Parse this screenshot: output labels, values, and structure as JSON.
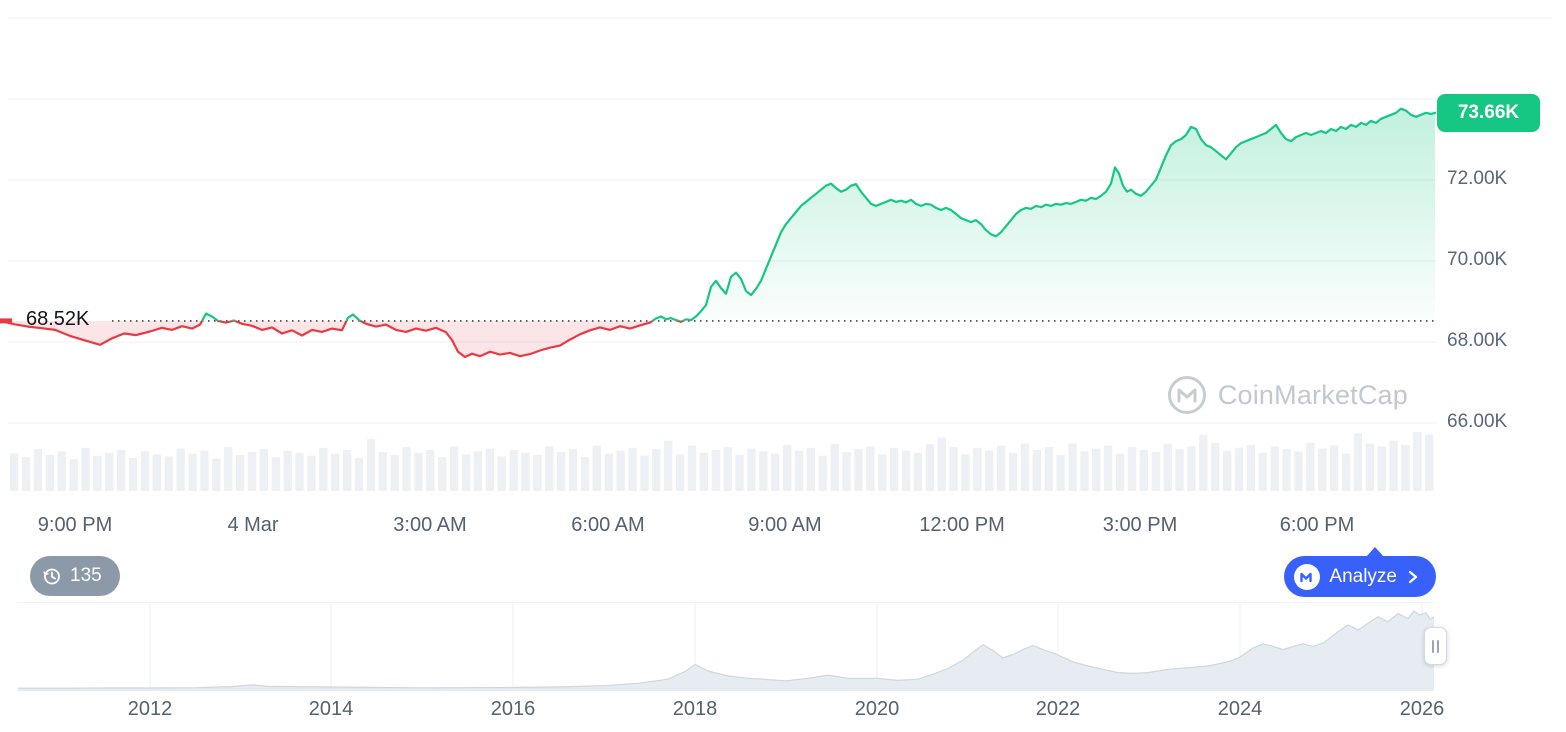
{
  "watermark": {
    "text": "CoinMarketCap"
  },
  "controls": {
    "history_count": "135",
    "analyze_label": "Analyze"
  },
  "colors": {
    "up": "#16c784",
    "down": "#ea3943",
    "accent_blue": "#3861fb",
    "badge_green": "#16c784",
    "pill_gray": "#8c99a9"
  },
  "chart_data": [
    {
      "type": "line",
      "baseline": {
        "value": 68520,
        "label": "68.52K"
      },
      "last_price": {
        "value": 73660,
        "label": "73.66K"
      },
      "ylim": [
        66000,
        76000
      ],
      "y_ticks": [
        {
          "value": 72000,
          "label": "72.00K"
        },
        {
          "value": 70000,
          "label": "70.00K"
        },
        {
          "value": 68000,
          "label": "68.00K"
        },
        {
          "value": 66000,
          "label": "66.00K"
        }
      ],
      "gridline_values": [
        76000,
        74000,
        72000,
        70000,
        68000,
        66000
      ],
      "x_ticks": [
        "9:00 PM",
        "4 Mar",
        "3:00 AM",
        "6:00 AM",
        "9:00 AM",
        "12:00 PM",
        "3:00 PM",
        "6:00 PM"
      ],
      "legend": "price above baseline green, below baseline red",
      "grid": true,
      "colors": {
        "up": "#16c784",
        "down": "#ea3943"
      },
      "points": [
        [
          0,
          68520
        ],
        [
          14,
          68440
        ],
        [
          28,
          68380
        ],
        [
          42,
          68340
        ],
        [
          55,
          68300
        ],
        [
          70,
          68150
        ],
        [
          85,
          68040
        ],
        [
          100,
          67930
        ],
        [
          112,
          68090
        ],
        [
          124,
          68210
        ],
        [
          136,
          68170
        ],
        [
          150,
          68260
        ],
        [
          162,
          68350
        ],
        [
          172,
          68300
        ],
        [
          182,
          68390
        ],
        [
          192,
          68330
        ],
        [
          200,
          68430
        ],
        [
          206,
          68700
        ],
        [
          212,
          68630
        ],
        [
          218,
          68520
        ],
        [
          226,
          68480
        ],
        [
          234,
          68530
        ],
        [
          242,
          68450
        ],
        [
          252,
          68400
        ],
        [
          262,
          68300
        ],
        [
          272,
          68360
        ],
        [
          282,
          68210
        ],
        [
          292,
          68290
        ],
        [
          302,
          68160
        ],
        [
          312,
          68300
        ],
        [
          322,
          68250
        ],
        [
          332,
          68330
        ],
        [
          342,
          68290
        ],
        [
          348,
          68600
        ],
        [
          353,
          68680
        ],
        [
          359,
          68540
        ],
        [
          366,
          68450
        ],
        [
          376,
          68380
        ],
        [
          386,
          68430
        ],
        [
          396,
          68300
        ],
        [
          406,
          68250
        ],
        [
          416,
          68330
        ],
        [
          426,
          68280
        ],
        [
          436,
          68350
        ],
        [
          446,
          68240
        ],
        [
          452,
          68050
        ],
        [
          458,
          67760
        ],
        [
          465,
          67630
        ],
        [
          472,
          67710
        ],
        [
          480,
          67650
        ],
        [
          490,
          67760
        ],
        [
          500,
          67690
        ],
        [
          510,
          67730
        ],
        [
          520,
          67650
        ],
        [
          530,
          67700
        ],
        [
          540,
          67790
        ],
        [
          550,
          67860
        ],
        [
          560,
          67910
        ],
        [
          570,
          68060
        ],
        [
          580,
          68190
        ],
        [
          590,
          68290
        ],
        [
          600,
          68360
        ],
        [
          610,
          68300
        ],
        [
          620,
          68390
        ],
        [
          630,
          68330
        ],
        [
          640,
          68410
        ],
        [
          650,
          68480
        ],
        [
          656,
          68580
        ],
        [
          661,
          68630
        ],
        [
          666,
          68560
        ],
        [
          671,
          68590
        ],
        [
          676,
          68540
        ],
        [
          681,
          68500
        ],
        [
          686,
          68560
        ],
        [
          691,
          68540
        ],
        [
          696,
          68630
        ],
        [
          701,
          68760
        ],
        [
          706,
          68910
        ],
        [
          711,
          69360
        ],
        [
          716,
          69510
        ],
        [
          721,
          69330
        ],
        [
          726,
          69190
        ],
        [
          731,
          69610
        ],
        [
          736,
          69710
        ],
        [
          741,
          69560
        ],
        [
          746,
          69260
        ],
        [
          751,
          69160
        ],
        [
          756,
          69310
        ],
        [
          761,
          69510
        ],
        [
          766,
          69810
        ],
        [
          771,
          70110
        ],
        [
          776,
          70410
        ],
        [
          781,
          70710
        ],
        [
          786,
          70910
        ],
        [
          791,
          71060
        ],
        [
          796,
          71210
        ],
        [
          801,
          71360
        ],
        [
          806,
          71460
        ],
        [
          811,
          71560
        ],
        [
          816,
          71660
        ],
        [
          821,
          71760
        ],
        [
          826,
          71860
        ],
        [
          831,
          71910
        ],
        [
          836,
          71800
        ],
        [
          841,
          71710
        ],
        [
          846,
          71760
        ],
        [
          851,
          71860
        ],
        [
          856,
          71900
        ],
        [
          861,
          71710
        ],
        [
          866,
          71560
        ],
        [
          871,
          71410
        ],
        [
          876,
          71360
        ],
        [
          881,
          71410
        ],
        [
          886,
          71460
        ],
        [
          891,
          71510
        ],
        [
          896,
          71460
        ],
        [
          901,
          71490
        ],
        [
          906,
          71450
        ],
        [
          911,
          71510
        ],
        [
          916,
          71410
        ],
        [
          921,
          71360
        ],
        [
          926,
          71410
        ],
        [
          931,
          71390
        ],
        [
          936,
          71310
        ],
        [
          941,
          71260
        ],
        [
          946,
          71310
        ],
        [
          951,
          71260
        ],
        [
          956,
          71160
        ],
        [
          961,
          71060
        ],
        [
          966,
          71010
        ],
        [
          971,
          70960
        ],
        [
          976,
          71010
        ],
        [
          981,
          70910
        ],
        [
          986,
          70760
        ],
        [
          991,
          70660
        ],
        [
          996,
          70610
        ],
        [
          1001,
          70710
        ],
        [
          1006,
          70860
        ],
        [
          1011,
          71010
        ],
        [
          1016,
          71160
        ],
        [
          1021,
          71260
        ],
        [
          1026,
          71310
        ],
        [
          1031,
          71290
        ],
        [
          1036,
          71360
        ],
        [
          1041,
          71330
        ],
        [
          1046,
          71390
        ],
        [
          1051,
          71360
        ],
        [
          1056,
          71410
        ],
        [
          1061,
          71390
        ],
        [
          1066,
          71430
        ],
        [
          1071,
          71410
        ],
        [
          1076,
          71460
        ],
        [
          1081,
          71510
        ],
        [
          1086,
          71490
        ],
        [
          1091,
          71560
        ],
        [
          1096,
          71530
        ],
        [
          1101,
          71610
        ],
        [
          1106,
          71710
        ],
        [
          1111,
          71910
        ],
        [
          1115,
          72310
        ],
        [
          1119,
          72160
        ],
        [
          1123,
          71860
        ],
        [
          1127,
          71710
        ],
        [
          1131,
          71760
        ],
        [
          1136,
          71660
        ],
        [
          1141,
          71610
        ],
        [
          1146,
          71710
        ],
        [
          1151,
          71860
        ],
        [
          1156,
          72010
        ],
        [
          1161,
          72310
        ],
        [
          1166,
          72610
        ],
        [
          1171,
          72860
        ],
        [
          1176,
          72960
        ],
        [
          1181,
          73010
        ],
        [
          1186,
          73110
        ],
        [
          1191,
          73310
        ],
        [
          1196,
          73260
        ],
        [
          1201,
          73010
        ],
        [
          1206,
          72860
        ],
        [
          1211,
          72810
        ],
        [
          1216,
          72710
        ],
        [
          1221,
          72610
        ],
        [
          1226,
          72510
        ],
        [
          1231,
          72660
        ],
        [
          1236,
          72810
        ],
        [
          1241,
          72910
        ],
        [
          1246,
          72960
        ],
        [
          1251,
          73010
        ],
        [
          1256,
          73060
        ],
        [
          1261,
          73110
        ],
        [
          1266,
          73160
        ],
        [
          1271,
          73260
        ],
        [
          1276,
          73360
        ],
        [
          1281,
          73160
        ],
        [
          1286,
          73010
        ],
        [
          1291,
          72960
        ],
        [
          1296,
          73060
        ],
        [
          1301,
          73110
        ],
        [
          1306,
          73160
        ],
        [
          1311,
          73110
        ],
        [
          1316,
          73160
        ],
        [
          1321,
          73210
        ],
        [
          1326,
          73160
        ],
        [
          1331,
          73260
        ],
        [
          1336,
          73210
        ],
        [
          1341,
          73310
        ],
        [
          1346,
          73260
        ],
        [
          1351,
          73360
        ],
        [
          1356,
          73310
        ],
        [
          1361,
          73410
        ],
        [
          1366,
          73360
        ],
        [
          1371,
          73460
        ],
        [
          1376,
          73410
        ],
        [
          1381,
          73510
        ],
        [
          1386,
          73560
        ],
        [
          1391,
          73610
        ],
        [
          1396,
          73660
        ],
        [
          1401,
          73760
        ],
        [
          1406,
          73710
        ],
        [
          1411,
          73610
        ],
        [
          1416,
          73560
        ],
        [
          1421,
          73610
        ],
        [
          1426,
          73660
        ],
        [
          1431,
          73630
        ],
        [
          1435,
          73660
        ]
      ]
    },
    {
      "type": "bar",
      "title": "volume",
      "values": [
        0.52,
        0.47,
        0.58,
        0.5,
        0.55,
        0.44,
        0.6,
        0.49,
        0.53,
        0.57,
        0.46,
        0.55,
        0.51,
        0.48,
        0.59,
        0.52,
        0.56,
        0.45,
        0.61,
        0.5,
        0.54,
        0.58,
        0.47,
        0.56,
        0.53,
        0.49,
        0.6,
        0.52,
        0.57,
        0.46,
        0.72,
        0.54,
        0.5,
        0.61,
        0.53,
        0.57,
        0.47,
        0.62,
        0.51,
        0.55,
        0.59,
        0.48,
        0.57,
        0.53,
        0.5,
        0.62,
        0.54,
        0.58,
        0.47,
        0.63,
        0.52,
        0.56,
        0.6,
        0.49,
        0.58,
        0.7,
        0.51,
        0.63,
        0.53,
        0.57,
        0.61,
        0.5,
        0.59,
        0.55,
        0.52,
        0.64,
        0.56,
        0.6,
        0.49,
        0.65,
        0.54,
        0.58,
        0.62,
        0.51,
        0.6,
        0.56,
        0.53,
        0.65,
        0.74,
        0.61,
        0.51,
        0.6,
        0.56,
        0.63,
        0.53,
        0.66,
        0.57,
        0.61,
        0.5,
        0.66,
        0.55,
        0.59,
        0.63,
        0.52,
        0.61,
        0.57,
        0.54,
        0.66,
        0.58,
        0.62,
        0.78,
        0.67,
        0.56,
        0.6,
        0.64,
        0.53,
        0.62,
        0.58,
        0.55,
        0.67,
        0.59,
        0.63,
        0.52,
        0.8,
        0.66,
        0.62,
        0.7,
        0.64,
        0.82,
        0.78
      ]
    },
    {
      "type": "area",
      "title": "history navigator",
      "x_ticks": [
        "2012",
        "2014",
        "2016",
        "2018",
        "2020",
        "2022",
        "2024",
        "2026"
      ],
      "points": [
        [
          0,
          0.01
        ],
        [
          40,
          0.01
        ],
        [
          90,
          0.012
        ],
        [
          132,
          0.012
        ],
        [
          180,
          0.016
        ],
        [
          215,
          0.03
        ],
        [
          235,
          0.05
        ],
        [
          250,
          0.032
        ],
        [
          313,
          0.025
        ],
        [
          360,
          0.018
        ],
        [
          404,
          0.013
        ],
        [
          450,
          0.016
        ],
        [
          495,
          0.018
        ],
        [
          540,
          0.026
        ],
        [
          586,
          0.04
        ],
        [
          620,
          0.07
        ],
        [
          650,
          0.12
        ],
        [
          668,
          0.22
        ],
        [
          677,
          0.3
        ],
        [
          690,
          0.22
        ],
        [
          710,
          0.16
        ],
        [
          730,
          0.13
        ],
        [
          768,
          0.1
        ],
        [
          790,
          0.13
        ],
        [
          810,
          0.17
        ],
        [
          830,
          0.13
        ],
        [
          859,
          0.13
        ],
        [
          880,
          0.105
        ],
        [
          900,
          0.12
        ],
        [
          915,
          0.18
        ],
        [
          930,
          0.25
        ],
        [
          945,
          0.35
        ],
        [
          955,
          0.45
        ],
        [
          965,
          0.54
        ],
        [
          975,
          0.47
        ],
        [
          985,
          0.38
        ],
        [
          995,
          0.42
        ],
        [
          1005,
          0.48
        ],
        [
          1015,
          0.53
        ],
        [
          1025,
          0.48
        ],
        [
          1039,
          0.42
        ],
        [
          1055,
          0.33
        ],
        [
          1070,
          0.28
        ],
        [
          1085,
          0.24
        ],
        [
          1100,
          0.2
        ],
        [
          1115,
          0.19
        ],
        [
          1130,
          0.2
        ],
        [
          1150,
          0.24
        ],
        [
          1170,
          0.26
        ],
        [
          1190,
          0.28
        ],
        [
          1210,
          0.33
        ],
        [
          1221,
          0.38
        ],
        [
          1235,
          0.5
        ],
        [
          1245,
          0.55
        ],
        [
          1255,
          0.52
        ],
        [
          1265,
          0.48
        ],
        [
          1275,
          0.52
        ],
        [
          1285,
          0.55
        ],
        [
          1295,
          0.52
        ],
        [
          1305,
          0.56
        ],
        [
          1312,
          0.62
        ],
        [
          1320,
          0.7
        ],
        [
          1330,
          0.78
        ],
        [
          1340,
          0.72
        ],
        [
          1350,
          0.8
        ],
        [
          1360,
          0.88
        ],
        [
          1370,
          0.82
        ],
        [
          1380,
          0.92
        ],
        [
          1390,
          0.86
        ],
        [
          1396,
          0.95
        ],
        [
          1402,
          0.9
        ],
        [
          1408,
          0.93
        ],
        [
          1412,
          0.85
        ],
        [
          1416,
          0.88
        ]
      ]
    }
  ]
}
